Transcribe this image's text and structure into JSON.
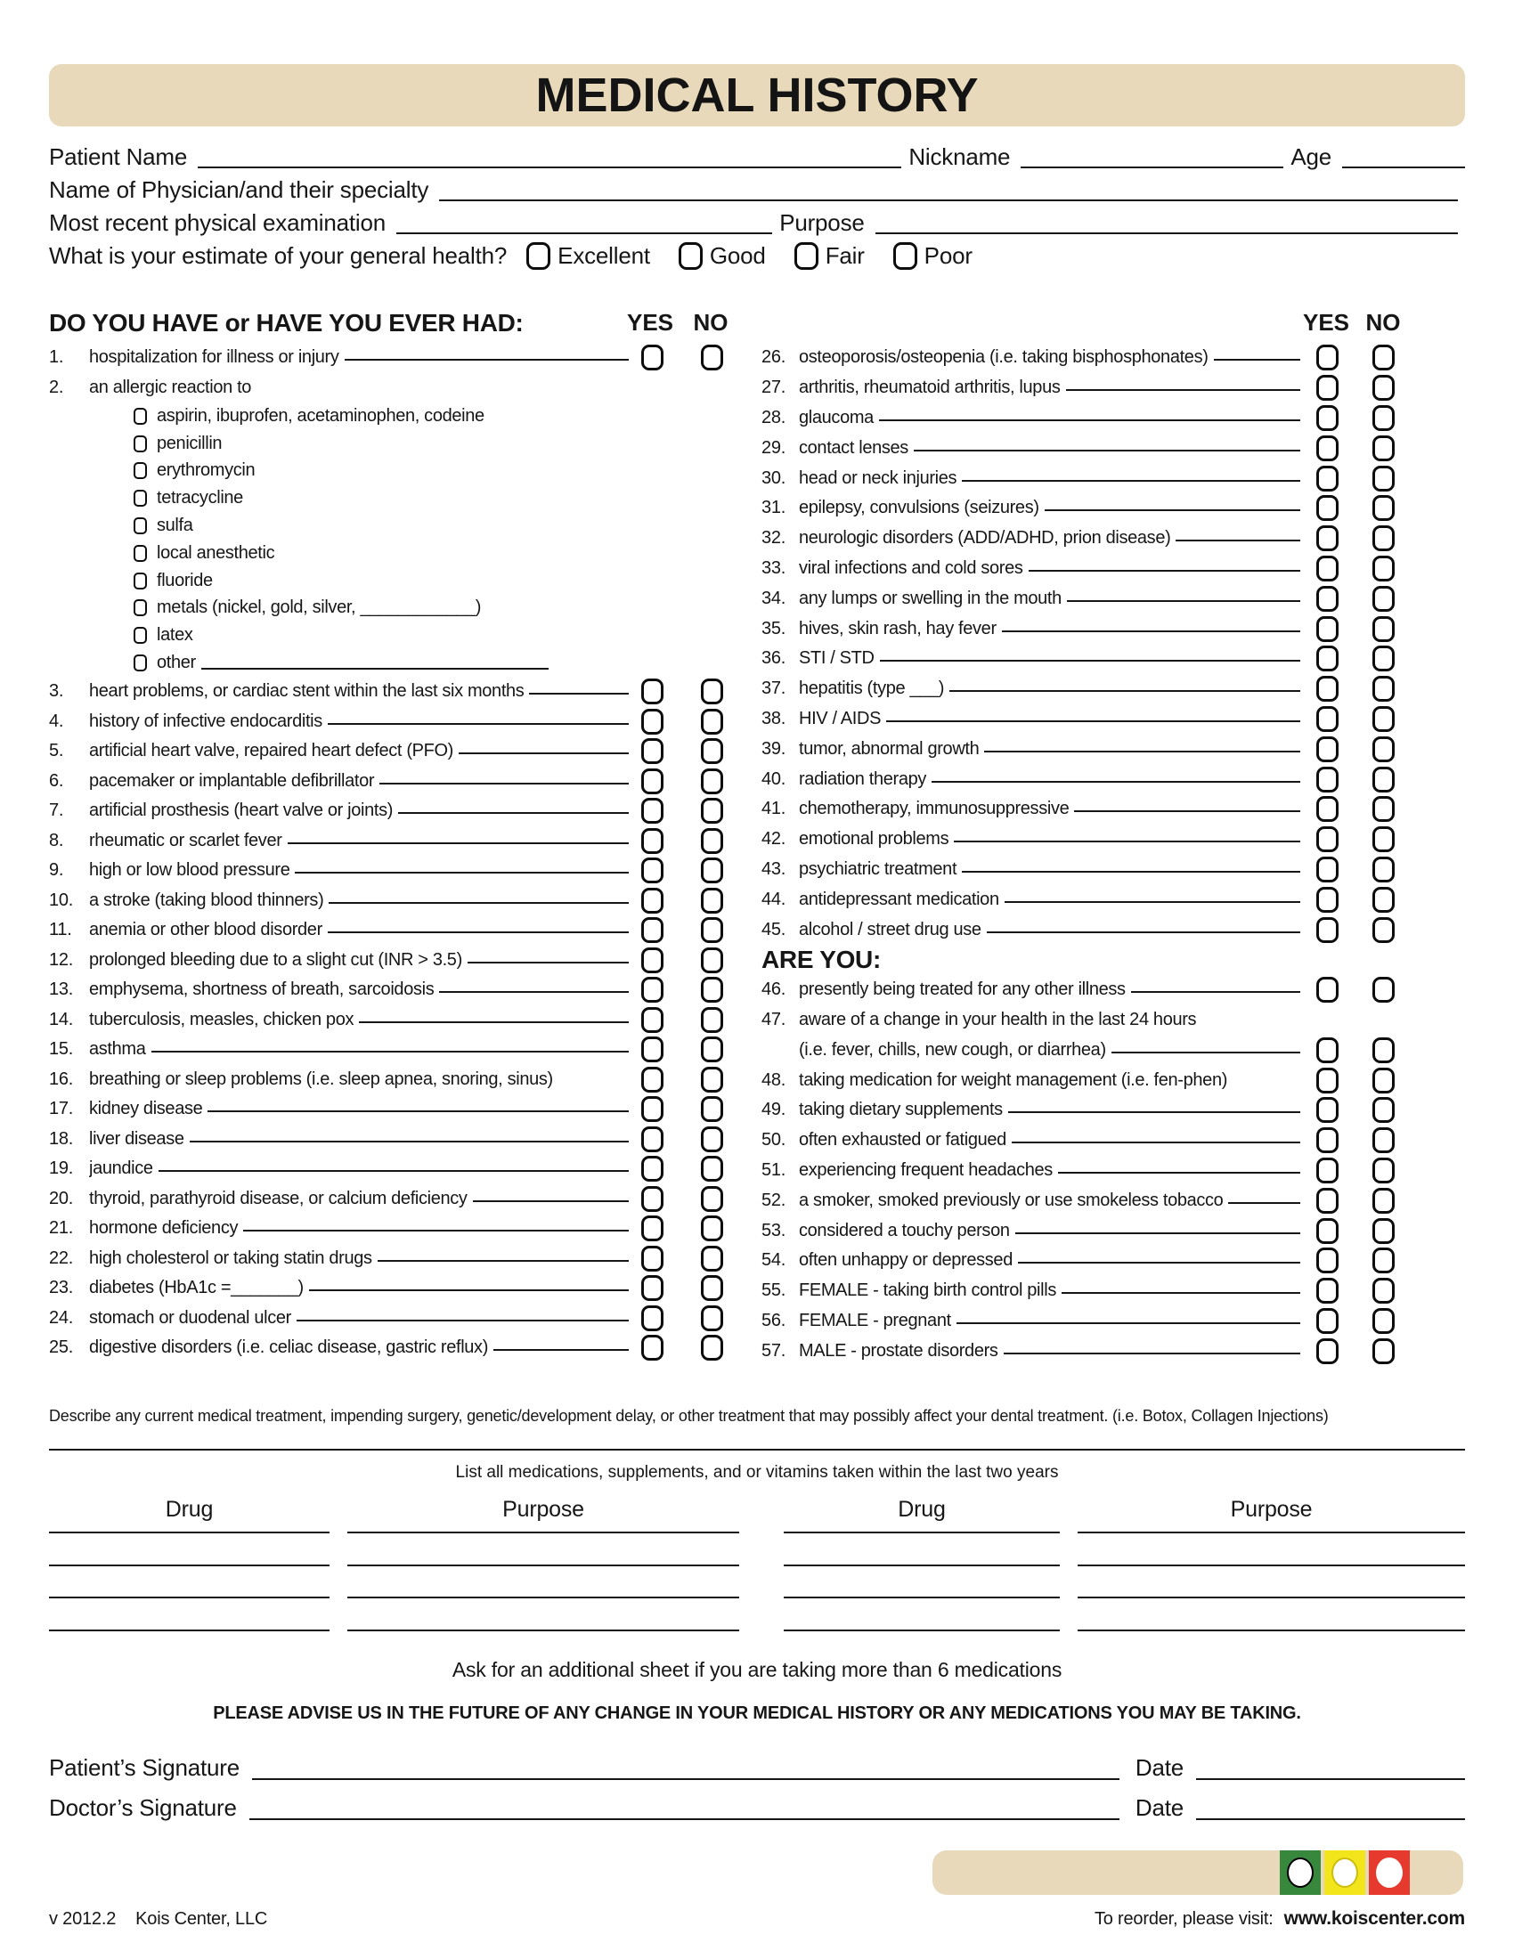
{
  "title": "MEDICAL HISTORY",
  "header": {
    "patient_name_label": "Patient Name",
    "nickname_label": "Nickname",
    "age_label": "Age",
    "physician_label": "Name of Physician/and their specialty",
    "exam_label": "Most recent physical examination",
    "purpose_label": "Purpose",
    "health_question": "What is your estimate of your general health?",
    "health_options": [
      "Excellent",
      "Good",
      "Fair",
      "Poor"
    ]
  },
  "questions": {
    "section_heading": "DO YOU HAVE or HAVE YOU EVER HAD:",
    "yes_label": "YES",
    "no_label": "NO",
    "left": [
      {
        "id": "q1",
        "num": "1.",
        "text": "hospitalization for illness or injury",
        "line": true,
        "boxes": true
      },
      {
        "id": "q2",
        "num": "2.",
        "text": "an allergic reaction to",
        "line": false,
        "boxes": false,
        "subs": [
          {
            "id": "allergy-aspirin",
            "label": "aspirin, ibuprofen, acetaminophen, codeine"
          },
          {
            "id": "allergy-penicillin",
            "label": "penicillin"
          },
          {
            "id": "allergy-erythromycin",
            "label": "erythromycin"
          },
          {
            "id": "allergy-tetracycline",
            "label": "tetracycline"
          },
          {
            "id": "allergy-sulfa",
            "label": "sulfa"
          },
          {
            "id": "allergy-local-anesthetic",
            "label": "local anesthetic"
          },
          {
            "id": "allergy-fluoride",
            "label": "fluoride"
          },
          {
            "id": "allergy-metals",
            "label": "metals (nickel, gold, silver, ____________)"
          },
          {
            "id": "allergy-latex",
            "label": "latex"
          },
          {
            "id": "allergy-other",
            "label": "other",
            "fill": true
          }
        ]
      },
      {
        "id": "q3",
        "num": "3.",
        "text": "heart problems, or cardiac stent within the last six months",
        "line": true,
        "boxes": true
      },
      {
        "id": "q4",
        "num": "4.",
        "text": "history of infective endocarditis",
        "line": true,
        "boxes": true
      },
      {
        "id": "q5",
        "num": "5.",
        "text": "artificial heart valve, repaired heart defect (PFO)",
        "line": true,
        "boxes": true
      },
      {
        "id": "q6",
        "num": "6.",
        "text": "pacemaker or implantable defibrillator",
        "line": true,
        "boxes": true
      },
      {
        "id": "q7",
        "num": "7.",
        "text": "artificial prosthesis (heart valve or joints)",
        "line": true,
        "boxes": true
      },
      {
        "id": "q8",
        "num": "8.",
        "text": "rheumatic or scarlet fever",
        "line": true,
        "boxes": true
      },
      {
        "id": "q9",
        "num": "9.",
        "text": "high or low blood pressure",
        "line": true,
        "boxes": true
      },
      {
        "id": "q10",
        "num": "10.",
        "text": "a stroke (taking blood thinners)",
        "line": true,
        "boxes": true
      },
      {
        "id": "q11",
        "num": "11.",
        "text": "anemia or other blood disorder",
        "line": true,
        "boxes": true
      },
      {
        "id": "q12",
        "num": "12.",
        "text": "prolonged bleeding due to a slight cut (INR > 3.5)",
        "line": true,
        "boxes": true
      },
      {
        "id": "q13",
        "num": "13.",
        "text": "emphysema, shortness of breath, sarcoidosis",
        "line": true,
        "boxes": true
      },
      {
        "id": "q14",
        "num": "14.",
        "text": "tuberculosis, measles, chicken pox",
        "line": true,
        "boxes": true
      },
      {
        "id": "q15",
        "num": "15.",
        "text": "asthma",
        "line": true,
        "boxes": true
      },
      {
        "id": "q16",
        "num": "16.",
        "text": "breathing or sleep problems (i.e. sleep apnea, snoring, sinus)",
        "line": false,
        "boxes": true
      },
      {
        "id": "q17",
        "num": "17.",
        "text": "kidney disease",
        "line": true,
        "boxes": true
      },
      {
        "id": "q18",
        "num": "18.",
        "text": "liver disease",
        "line": true,
        "boxes": true
      },
      {
        "id": "q19",
        "num": "19.",
        "text": "jaundice",
        "line": true,
        "boxes": true
      },
      {
        "id": "q20",
        "num": "20.",
        "text": "thyroid, parathyroid disease, or calcium deficiency",
        "line": true,
        "boxes": true
      },
      {
        "id": "q21",
        "num": "21.",
        "text": "hormone deficiency",
        "line": true,
        "boxes": true
      },
      {
        "id": "q22",
        "num": "22.",
        "text": "high cholesterol or taking statin drugs",
        "line": true,
        "boxes": true
      },
      {
        "id": "q23",
        "num": "23.",
        "text": "diabetes (HbA1c =_______)",
        "line": true,
        "boxes": true
      },
      {
        "id": "q24",
        "num": "24.",
        "text": "stomach or duodenal ulcer",
        "line": true,
        "boxes": true
      },
      {
        "id": "q25",
        "num": "25.",
        "text": "digestive disorders (i.e. celiac disease, gastric reflux)",
        "line": true,
        "boxes": true
      }
    ],
    "right": [
      {
        "id": "q26",
        "num": "26.",
        "text": "osteoporosis/osteopenia  (i.e. taking bisphosphonates)",
        "line": true,
        "boxes": true
      },
      {
        "id": "q27",
        "num": "27.",
        "text": "arthritis, rheumatoid arthritis, lupus",
        "line": true,
        "boxes": true
      },
      {
        "id": "q28",
        "num": "28.",
        "text": "glaucoma",
        "line": true,
        "boxes": true
      },
      {
        "id": "q29",
        "num": "29.",
        "text": "contact lenses",
        "line": true,
        "boxes": true
      },
      {
        "id": "q30",
        "num": "30.",
        "text": "head or neck injuries",
        "line": true,
        "boxes": true
      },
      {
        "id": "q31",
        "num": "31.",
        "text": "epilepsy, convulsions (seizures)",
        "line": true,
        "boxes": true
      },
      {
        "id": "q32",
        "num": "32.",
        "text": "neurologic disorders (ADD/ADHD, prion disease)",
        "line": true,
        "boxes": true
      },
      {
        "id": "q33",
        "num": "33.",
        "text": "viral infections and cold sores",
        "line": true,
        "boxes": true
      },
      {
        "id": "q34",
        "num": "34.",
        "text": "any lumps or swelling in the mouth",
        "line": true,
        "boxes": true
      },
      {
        "id": "q35",
        "num": "35.",
        "text": "hives, skin rash, hay fever",
        "line": true,
        "boxes": true
      },
      {
        "id": "q36",
        "num": "36.",
        "text": "STI / STD",
        "line": true,
        "boxes": true
      },
      {
        "id": "q37",
        "num": "37.",
        "text": "hepatitis (type ___)",
        "line": true,
        "boxes": true
      },
      {
        "id": "q38",
        "num": "38.",
        "text": "HIV / AIDS",
        "line": true,
        "boxes": true
      },
      {
        "id": "q39",
        "num": "39.",
        "text": "tumor, abnormal growth",
        "line": true,
        "boxes": true
      },
      {
        "id": "q40",
        "num": "40.",
        "text": "radiation therapy",
        "line": true,
        "boxes": true
      },
      {
        "id": "q41",
        "num": "41.",
        "text": "chemotherapy, immunosuppressive",
        "line": true,
        "boxes": true
      },
      {
        "id": "q42",
        "num": "42.",
        "text": "emotional problems",
        "line": true,
        "boxes": true
      },
      {
        "id": "q43",
        "num": "43.",
        "text": "psychiatric treatment",
        "line": true,
        "boxes": true
      },
      {
        "id": "q44",
        "num": "44.",
        "text": "antidepressant medication",
        "line": true,
        "boxes": true
      },
      {
        "id": "q45",
        "num": "45.",
        "text": "alcohol / street drug use",
        "line": true,
        "boxes": true
      },
      {
        "heading": "ARE YOU:",
        "id": "are-you-heading"
      },
      {
        "id": "q46",
        "num": "46.",
        "text": "presently being treated for any other illness",
        "line": true,
        "boxes": true
      },
      {
        "id": "q47",
        "num": "47.",
        "text": "aware of a change in your health in the last 24 hours",
        "line": false,
        "boxes": false
      },
      {
        "id": "q47-cont",
        "num": "",
        "text": "(i.e. fever, chills, new cough, or diarrhea)",
        "line": true,
        "boxes": true
      },
      {
        "id": "q48",
        "num": "48.",
        "text": "taking medication for weight management (i.e. fen-phen)",
        "line": false,
        "boxes": true
      },
      {
        "id": "q49",
        "num": "49.",
        "text": "taking dietary supplements",
        "line": true,
        "boxes": true
      },
      {
        "id": "q50",
        "num": "50.",
        "text": "often exhausted or fatigued",
        "line": true,
        "boxes": true
      },
      {
        "id": "q51",
        "num": "51.",
        "text": "experiencing frequent headaches",
        "line": true,
        "boxes": true
      },
      {
        "id": "q52",
        "num": "52.",
        "text": "a smoker, smoked previously or use smokeless tobacco",
        "line": true,
        "boxes": true
      },
      {
        "id": "q53",
        "num": "53.",
        "text": "considered a touchy person",
        "line": true,
        "boxes": true
      },
      {
        "id": "q54",
        "num": "54.",
        "text": "often unhappy or depressed",
        "line": true,
        "boxes": true
      },
      {
        "id": "q55",
        "num": "55.",
        "text": "FEMALE - taking birth control pills",
        "line": true,
        "boxes": true
      },
      {
        "id": "q56",
        "num": "56.",
        "text": "FEMALE - pregnant",
        "line": true,
        "boxes": true
      },
      {
        "id": "q57",
        "num": "57.",
        "text": "MALE - prostate disorders",
        "line": true,
        "boxes": true
      }
    ]
  },
  "treatment_note": "Describe any current medical treatment, impending surgery, genetic/development delay, or other treatment that may possibly affect your dental treatment. (i.e. Botox, Collagen Injections)",
  "medications": {
    "instruction": "List all medications, supplements, and or vitamins taken within the last two years",
    "columns": [
      "Drug",
      "Purpose",
      "Drug",
      "Purpose"
    ],
    "rows": 3,
    "extra_note": "Ask for an additional sheet if you are taking more than 6 medications"
  },
  "advisory": "PLEASE ADVISE US IN THE FUTURE OF ANY CHANGE IN YOUR MEDICAL HISTORY OR ANY MEDICATIONS YOU MAY BE TAKING.",
  "signatures": {
    "patient_label": "Patient’s Signature",
    "doctor_label": "Doctor’s Signature",
    "date_label": "Date"
  },
  "footer": {
    "version": "v 2012.2",
    "company": "Kois Center, LLC",
    "reorder_label": "To reorder, please visit:",
    "reorder_url": "www.koiscenter.com"
  },
  "colors": {
    "banner_tan": "#e8d9ba",
    "logo_green": "#37883d",
    "logo_yellow": "#f3e51c",
    "logo_red": "#e53a2d"
  }
}
